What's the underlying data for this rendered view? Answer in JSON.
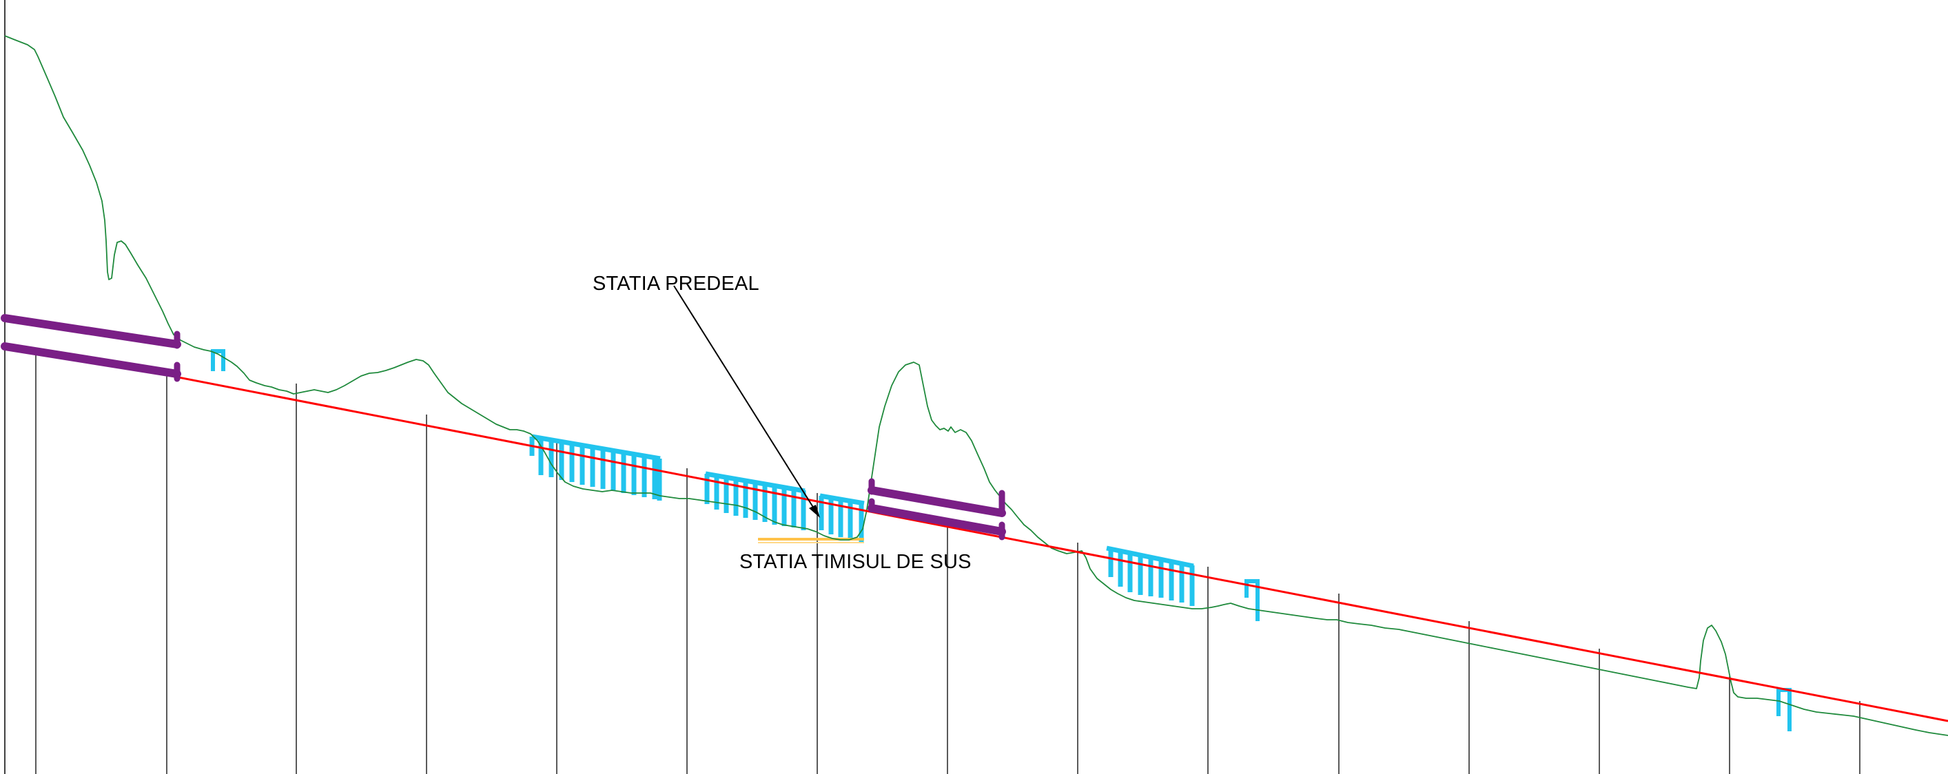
{
  "labels": {
    "station_predeal": "STATIA PREDEAL",
    "station_timisul": "STATIA TIMISUL DE SUS"
  },
  "colors": {
    "terrain": "#1f8a3c",
    "design_line": "#ff0000",
    "viaduct": "#7a1f86",
    "piers": "#22c4ee",
    "platform": "#ffc24a",
    "grid": "#000000",
    "arrow": "#000000"
  }
}
